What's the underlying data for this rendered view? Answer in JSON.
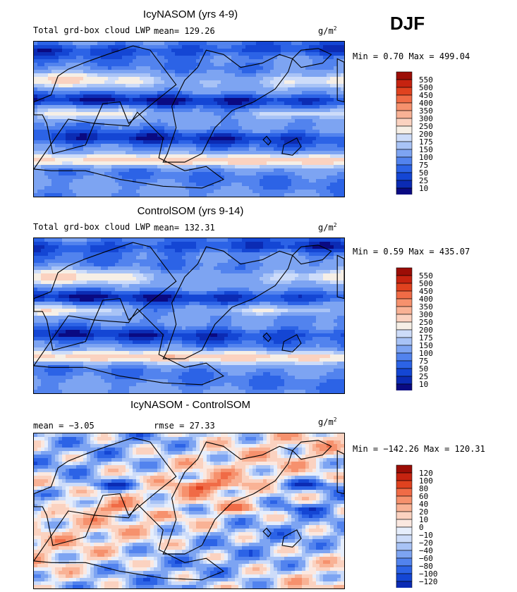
{
  "season_label": "DJF",
  "colors": {
    "seq": [
      "#0a0a82",
      "#0b2bb4",
      "#1446d4",
      "#2c63e6",
      "#5283ee",
      "#7da4f2",
      "#a8c3f6",
      "#cddcf9",
      "#f6efe6",
      "#fbd2c0",
      "#f9b295",
      "#f6916d",
      "#f06b46",
      "#e0421f",
      "#c62310",
      "#9c0d06"
    ],
    "div": [
      "#0a0a82",
      "#0b2bb4",
      "#1446d4",
      "#2c63e6",
      "#5283ee",
      "#7da4f2",
      "#a8c3f6",
      "#cddcf9",
      "#e6eefc",
      "#fbe8e0",
      "#fbd2c0",
      "#f9b295",
      "#f6916d",
      "#f06b46",
      "#e0421f",
      "#c62310",
      "#9c0d06"
    ]
  },
  "chart_data": [
    {
      "type": "heatmap",
      "title": "IcyNASOM (yrs 4-9)",
      "field_label": "Total grd-box cloud LWP",
      "mean_text": "mean=  129.26",
      "units": "g/m",
      "units_exp": "2",
      "min_label": "Min =",
      "min_value": "0.70",
      "max_label": "Max =",
      "max_value": "499.04",
      "palette": "seq",
      "colorbar_levels": [
        "550",
        "500",
        "450",
        "400",
        "350",
        "300",
        "250",
        "200",
        "175",
        "150",
        "100",
        "75",
        "50",
        "25",
        "10"
      ]
    },
    {
      "type": "heatmap",
      "title": "ControlSOM (yrs 9-14)",
      "field_label": "Total grd-box cloud LWP",
      "mean_text": "mean=  132.31",
      "units": "g/m",
      "units_exp": "2",
      "min_label": "Min =",
      "min_value": "0.59",
      "max_label": "Max =",
      "max_value": "435.07",
      "palette": "seq",
      "colorbar_levels": [
        "550",
        "500",
        "450",
        "400",
        "350",
        "300",
        "250",
        "200",
        "175",
        "150",
        "100",
        "75",
        "50",
        "25",
        "10"
      ]
    },
    {
      "type": "heatmap",
      "title": "IcyNASOM - ControlSOM",
      "field_label": "",
      "mean_text": "mean =  −3.05",
      "rmse_text": "rmse =  27.33",
      "units": "g/m",
      "units_exp": "2",
      "min_label": "Min =",
      "min_value": "−142.26",
      "max_label": "Max =",
      "max_value": "120.31",
      "palette": "div",
      "colorbar_levels": [
        "120",
        "100",
        "80",
        "60",
        "40",
        "20",
        "10",
        "0",
        "−10",
        "−20",
        "−40",
        "−60",
        "−80",
        "−100",
        "−120"
      ]
    }
  ]
}
